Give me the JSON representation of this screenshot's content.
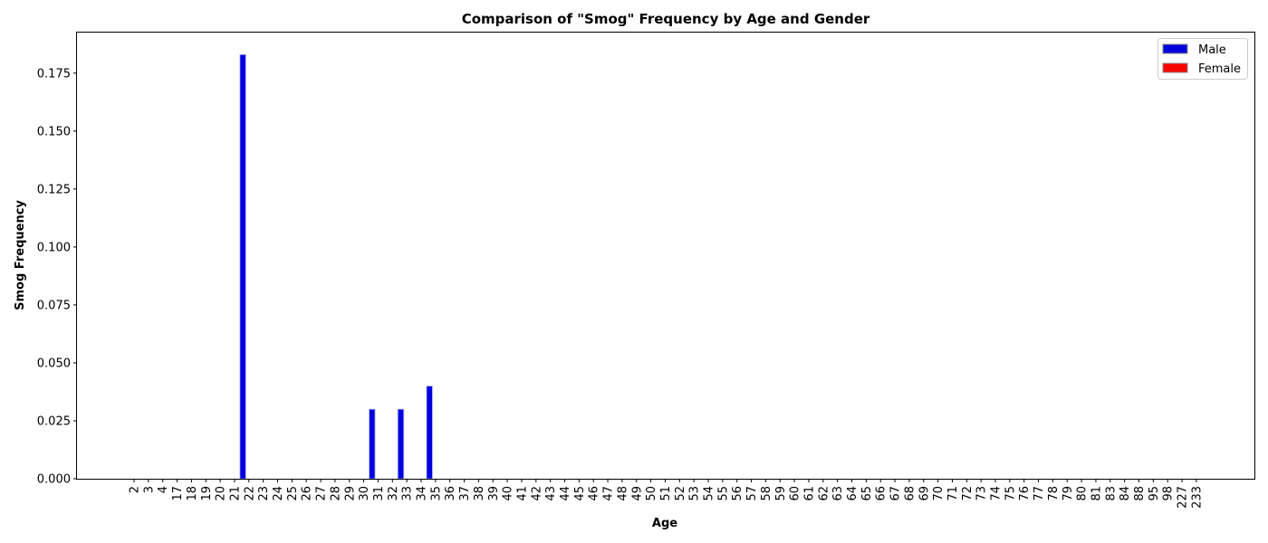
{
  "chart_data": {
    "type": "bar",
    "title": "Comparison of \"Smog\" Frequency by Age and Gender",
    "xlabel": "Age",
    "ylabel": "Smog Frequency",
    "ylim": [
      0,
      0.1925
    ],
    "yticks": [
      "0.000",
      "0.025",
      "0.050",
      "0.075",
      "0.100",
      "0.125",
      "0.150",
      "0.175"
    ],
    "grid": false,
    "legend_position": "top-right",
    "categories": [
      "2",
      "3",
      "4",
      "17",
      "18",
      "19",
      "20",
      "21",
      "22",
      "23",
      "24",
      "25",
      "26",
      "27",
      "28",
      "29",
      "30",
      "31",
      "32",
      "33",
      "34",
      "35",
      "36",
      "37",
      "38",
      "39",
      "40",
      "41",
      "42",
      "43",
      "44",
      "45",
      "46",
      "47",
      "48",
      "49",
      "50",
      "51",
      "52",
      "53",
      "54",
      "55",
      "56",
      "57",
      "58",
      "59",
      "60",
      "61",
      "62",
      "63",
      "64",
      "65",
      "66",
      "67",
      "68",
      "69",
      "70",
      "71",
      "72",
      "73",
      "74",
      "75",
      "76",
      "77",
      "78",
      "79",
      "80",
      "81",
      "83",
      "84",
      "88",
      "95",
      "98",
      "227",
      "233"
    ],
    "series": [
      {
        "name": "Male",
        "color": "#0000dd",
        "values": [
          0,
          0,
          0,
          0,
          0,
          0,
          0,
          0.183,
          0,
          0,
          0,
          0,
          0,
          0,
          0,
          0,
          0.03,
          0,
          0.03,
          0,
          0.04,
          0,
          0,
          0,
          0,
          0,
          0,
          0,
          0,
          0,
          0,
          0,
          0,
          0,
          0,
          0,
          0,
          0,
          0,
          0,
          0,
          0,
          0,
          0,
          0,
          0,
          0,
          0,
          0,
          0,
          0,
          0,
          0,
          0,
          0,
          0,
          0,
          0,
          0,
          0,
          0,
          0,
          0,
          0,
          0,
          0,
          0,
          0,
          0,
          0,
          0,
          0,
          0,
          0,
          0
        ]
      },
      {
        "name": "Female",
        "color": "#ff0000",
        "values": [
          0,
          0,
          0,
          0,
          0,
          0,
          0,
          0,
          0,
          0,
          0,
          0,
          0,
          0,
          0,
          0,
          0,
          0,
          0,
          0,
          0,
          0,
          0,
          0,
          0,
          0,
          0,
          0,
          0,
          0,
          0,
          0,
          0,
          0,
          0,
          0,
          0,
          0,
          0,
          0,
          0,
          0,
          0,
          0,
          0,
          0,
          0,
          0,
          0,
          0,
          0,
          0,
          0,
          0,
          0,
          0,
          0,
          0,
          0,
          0,
          0,
          0,
          0,
          0,
          0,
          0,
          0,
          0,
          0,
          0,
          0,
          0,
          0,
          0,
          0
        ]
      }
    ]
  }
}
